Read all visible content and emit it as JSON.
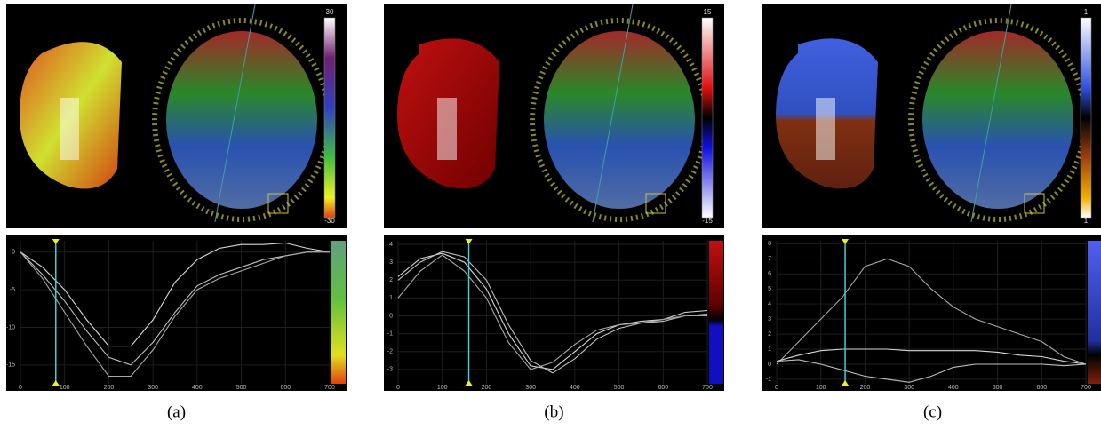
{
  "chart_data": [
    {
      "type": "line",
      "caption": "(a)",
      "colorbar_labels": [
        "30",
        "-30"
      ],
      "x": [
        0,
        50,
        100,
        150,
        200,
        250,
        300,
        350,
        400,
        450,
        500,
        550,
        600,
        650,
        700
      ],
      "xlim": [
        0,
        700
      ],
      "xticks": [
        0,
        100,
        200,
        300,
        400,
        500,
        600,
        700
      ],
      "ylim": [
        -17.5,
        1.5
      ],
      "yticks": [
        0,
        -5,
        -10,
        -15
      ],
      "cursor_x": 80,
      "grid": true,
      "series": [
        {
          "color": "#d8d8d8",
          "values": [
            0,
            -2,
            -5,
            -9,
            -12.5,
            -12.5,
            -9,
            -4,
            -1,
            0.5,
            1,
            1,
            1.2,
            0.5,
            0
          ]
        },
        {
          "color": "#bfbfbf",
          "values": [
            0,
            -3,
            -6.5,
            -10.5,
            -14,
            -15,
            -12,
            -8,
            -4.5,
            -3,
            -2,
            -1,
            -0.5,
            0,
            0
          ]
        },
        {
          "color": "#a8a8a8",
          "values": [
            0,
            -3.5,
            -8,
            -12.5,
            -16.5,
            -16.5,
            -13,
            -8.5,
            -5,
            -3.5,
            -2.5,
            -1.5,
            -0.5,
            0,
            0
          ]
        }
      ]
    },
    {
      "type": "line",
      "caption": "(b)",
      "colorbar_labels": [
        "15",
        "-15"
      ],
      "x": [
        0,
        50,
        100,
        150,
        200,
        250,
        300,
        350,
        400,
        450,
        500,
        550,
        600,
        650,
        700
      ],
      "xlim": [
        0,
        700
      ],
      "xticks": [
        0,
        100,
        200,
        300,
        400,
        500,
        600,
        700
      ],
      "ylim": [
        -3.8,
        4.2
      ],
      "yticks": [
        4,
        3,
        2,
        1,
        0,
        -1,
        -2,
        -3
      ],
      "cursor_x": 160,
      "grid": true,
      "series": [
        {
          "color": "#d8d8d8",
          "values": [
            2.2,
            3.2,
            3.5,
            3,
            1.5,
            -1,
            -2.8,
            -3,
            -2,
            -1,
            -0.5,
            -0.3,
            -0.2,
            0.2,
            0.3
          ]
        },
        {
          "color": "#bfbfbf",
          "values": [
            2,
            3,
            3.6,
            3.3,
            2,
            -0.5,
            -2.5,
            -3.2,
            -2.4,
            -1.3,
            -0.7,
            -0.4,
            -0.3,
            0,
            0.1
          ]
        },
        {
          "color": "#a8a8a8",
          "values": [
            1,
            2.5,
            3.4,
            2.5,
            1,
            -1.5,
            -3,
            -2.6,
            -1.6,
            -0.8,
            -0.5,
            -0.4,
            -0.2,
            0,
            0
          ]
        }
      ]
    },
    {
      "type": "line",
      "caption": "(c)",
      "colorbar_labels": [
        "1",
        "1"
      ],
      "x": [
        0,
        50,
        100,
        150,
        200,
        250,
        300,
        350,
        400,
        450,
        500,
        550,
        600,
        650,
        700
      ],
      "xlim": [
        0,
        700
      ],
      "xticks": [
        0,
        100,
        200,
        300,
        400,
        500,
        600,
        700
      ],
      "ylim": [
        -1.3,
        8.2
      ],
      "yticks": [
        8,
        7,
        6,
        5,
        4,
        3,
        2,
        1,
        0,
        -1
      ],
      "cursor_x": 155,
      "grid": true,
      "series": [
        {
          "color": "#a8a8a8",
          "values": [
            0,
            1.5,
            3,
            4.5,
            6.5,
            7,
            6.5,
            5,
            3.8,
            3,
            2.5,
            2,
            1.5,
            0.5,
            0
          ]
        },
        {
          "color": "#d8d8d8",
          "values": [
            0.2,
            0.6,
            0.9,
            1,
            1,
            1,
            0.9,
            0.9,
            0.9,
            0.9,
            0.8,
            0.6,
            0.5,
            0.2,
            0
          ]
        },
        {
          "color": "#bfbfbf",
          "values": [
            0.2,
            0.3,
            0,
            -0.4,
            -0.8,
            -1,
            -1.2,
            -0.8,
            -0.2,
            0,
            0,
            0,
            0,
            -0.1,
            0
          ]
        }
      ]
    }
  ]
}
